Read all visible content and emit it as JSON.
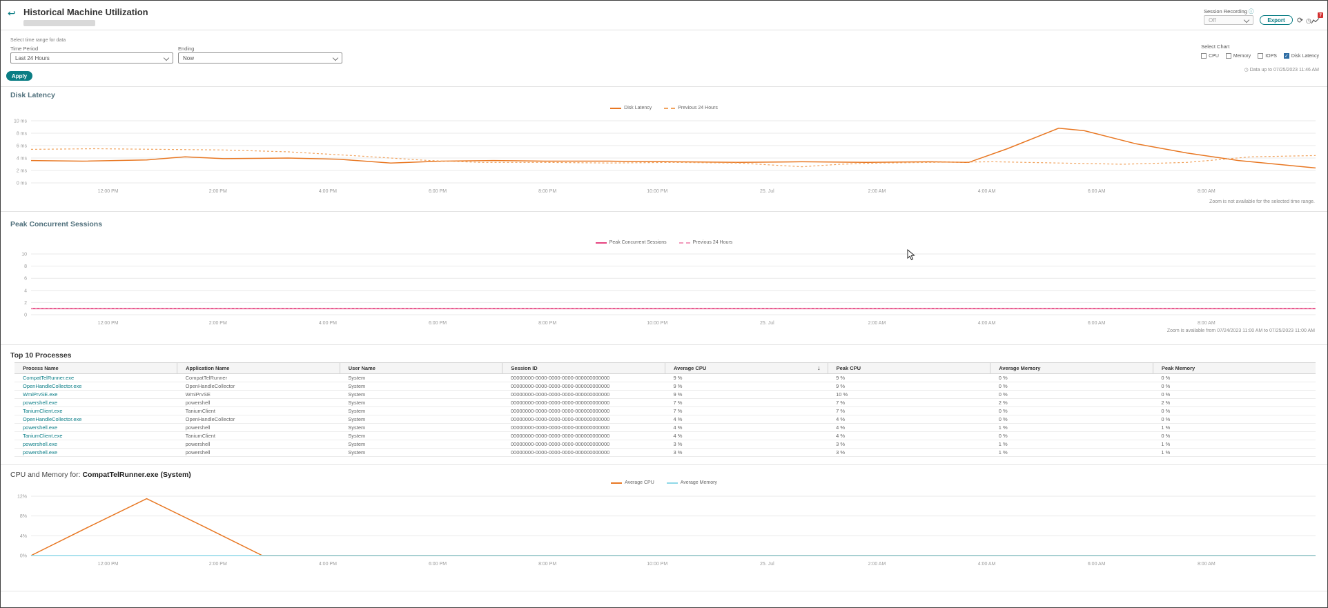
{
  "header": {
    "title": "Historical Machine Utilization",
    "session_recording_label": "Session Recording",
    "session_recording_value": "Off",
    "export_label": "Export",
    "alerts_badge": "7"
  },
  "filters": {
    "section_label": "Select time range for data",
    "time_period_label": "Time Period",
    "time_period_value": "Last 24 Hours",
    "ending_label": "Ending",
    "ending_value": "Now",
    "apply_label": "Apply",
    "select_chart_label": "Select Chart",
    "select_chart_options": [
      {
        "label": "CPU",
        "checked": false
      },
      {
        "label": "Memory",
        "checked": false
      },
      {
        "label": "IOPS",
        "checked": false
      },
      {
        "label": "Disk Latency",
        "checked": true
      }
    ],
    "data_up_to": "Data up to 07/25/2023 11:46 AM"
  },
  "colors": {
    "accent_teal": "#0a7d84",
    "orange": "#e87722",
    "orange_light": "#f1a35e",
    "pink": "#e5437f",
    "pink_light": "#f29abc",
    "cyan": "#8fd8e8",
    "checkbox_checked": "#2e6da4",
    "badge_red": "#d32f2f"
  },
  "chart_data": [
    {
      "id": "disk-latency",
      "type": "line",
      "title": "Disk Latency",
      "ymax": 10,
      "y_ticks": [
        {
          "v": 10,
          "label": "10 ms"
        },
        {
          "v": 8,
          "label": "8 ms"
        },
        {
          "v": 6,
          "label": "6 ms"
        },
        {
          "v": 4,
          "label": "4 ms"
        },
        {
          "v": 2,
          "label": "2 ms"
        },
        {
          "v": 0,
          "label": "0 ms"
        }
      ],
      "x_ticks": [
        "12:00 PM",
        "2:00 PM",
        "4:00 PM",
        "6:00 PM",
        "8:00 PM",
        "10:00 PM",
        "25. Jul",
        "2:00 AM",
        "4:00 AM",
        "6:00 AM",
        "8:00 AM"
      ],
      "series": [
        {
          "name": "Disk Latency",
          "color": "#e87722",
          "dash": false,
          "width": 1.5,
          "points": [
            [
              0,
              3.6
            ],
            [
              0.04,
              3.5
            ],
            [
              0.09,
              3.7
            ],
            [
              0.12,
              4.2
            ],
            [
              0.15,
              3.9
            ],
            [
              0.2,
              4.0
            ],
            [
              0.24,
              3.8
            ],
            [
              0.28,
              3.2
            ],
            [
              0.32,
              3.5
            ],
            [
              0.36,
              3.6
            ],
            [
              0.4,
              3.5
            ],
            [
              0.45,
              3.5
            ],
            [
              0.5,
              3.4
            ],
            [
              0.55,
              3.3
            ],
            [
              0.6,
              3.4
            ],
            [
              0.65,
              3.3
            ],
            [
              0.7,
              3.4
            ],
            [
              0.73,
              3.3
            ],
            [
              0.76,
              5.5
            ],
            [
              0.8,
              8.8
            ],
            [
              0.82,
              8.4
            ],
            [
              0.86,
              6.3
            ],
            [
              0.9,
              4.8
            ],
            [
              0.94,
              3.6
            ],
            [
              0.97,
              3.0
            ],
            [
              1,
              2.4
            ]
          ]
        },
        {
          "name": "Previous 24 Hours",
          "color": "#f1a35e",
          "dash": true,
          "width": 1.2,
          "points": [
            [
              0,
              5.4
            ],
            [
              0.05,
              5.5
            ],
            [
              0.1,
              5.4
            ],
            [
              0.15,
              5.3
            ],
            [
              0.2,
              5.0
            ],
            [
              0.25,
              4.4
            ],
            [
              0.28,
              4.0
            ],
            [
              0.31,
              3.6
            ],
            [
              0.35,
              3.3
            ],
            [
              0.4,
              3.3
            ],
            [
              0.45,
              3.2
            ],
            [
              0.5,
              3.3
            ],
            [
              0.55,
              3.2
            ],
            [
              0.6,
              2.6
            ],
            [
              0.63,
              3.0
            ],
            [
              0.66,
              3.2
            ],
            [
              0.7,
              3.3
            ],
            [
              0.75,
              3.4
            ],
            [
              0.8,
              3.2
            ],
            [
              0.85,
              3.0
            ],
            [
              0.9,
              3.3
            ],
            [
              0.95,
              4.2
            ],
            [
              1,
              4.4
            ]
          ]
        }
      ],
      "note": "Zoom is not available for the selected time range."
    },
    {
      "id": "peak-concurrent-sessions",
      "type": "line",
      "title": "Peak Concurrent Sessions",
      "ymax": 10,
      "y_ticks": [
        {
          "v": 10,
          "label": "10"
        },
        {
          "v": 8,
          "label": "8"
        },
        {
          "v": 6,
          "label": "6"
        },
        {
          "v": 4,
          "label": "4"
        },
        {
          "v": 2,
          "label": "2"
        },
        {
          "v": 0,
          "label": "0"
        }
      ],
      "x_ticks": [
        "12:00 PM",
        "2:00 PM",
        "4:00 PM",
        "6:00 PM",
        "8:00 PM",
        "10:00 PM",
        "25. Jul",
        "2:00 AM",
        "4:00 AM",
        "6:00 AM",
        "8:00 AM"
      ],
      "series": [
        {
          "name": "Peak Concurrent Sessions",
          "color": "#e5437f",
          "dash": false,
          "width": 1.8,
          "points": [
            [
              0,
              1
            ],
            [
              1,
              1
            ]
          ]
        },
        {
          "name": "Previous 24 Hours",
          "color": "#f29abc",
          "dash": true,
          "width": 1.2,
          "points": [
            [
              0,
              1
            ],
            [
              1,
              1
            ]
          ]
        }
      ],
      "note": "Zoom is available from 07/24/2023 11:00 AM to 07/25/2023 11:00 AM"
    },
    {
      "id": "process-cpu-memory",
      "type": "line",
      "title_prefix": "CPU and Memory for: ",
      "title_bold": "CompatTelRunner.exe (System)",
      "ymax": 12,
      "y_ticks": [
        {
          "v": 12,
          "label": "12%"
        },
        {
          "v": 8,
          "label": "8%"
        },
        {
          "v": 4,
          "label": "4%"
        },
        {
          "v": 0,
          "label": "0%"
        }
      ],
      "x_ticks": [
        "12:00 PM",
        "2:00 PM",
        "4:00 PM",
        "6:00 PM",
        "8:00 PM",
        "10:00 PM",
        "25. Jul",
        "2:00 AM",
        "4:00 AM",
        "6:00 AM",
        "8:00 AM"
      ],
      "series": [
        {
          "name": "Average CPU",
          "color": "#e87722",
          "dash": false,
          "width": 1.5,
          "points": [
            [
              0,
              0
            ],
            [
              0.045,
              5.8
            ],
            [
              0.09,
              11.5
            ],
            [
              0.135,
              5.8
            ],
            [
              0.18,
              0
            ],
            [
              1,
              0
            ]
          ]
        },
        {
          "name": "Average Memory",
          "color": "#8fd8e8",
          "dash": false,
          "width": 1.5,
          "points": [
            [
              0,
              0
            ],
            [
              1,
              0
            ]
          ]
        }
      ],
      "note": ""
    }
  ],
  "table": {
    "title": "Top 10 Processes",
    "columns": [
      "Process Name",
      "Application Name",
      "User Name",
      "Session ID",
      "Average CPU",
      "Peak CPU",
      "Average Memory",
      "Peak Memory"
    ],
    "sort_column": "Average CPU",
    "sort_direction": "desc",
    "rows": [
      [
        "CompatTelRunner.exe",
        "CompatTelRunner",
        "System",
        "00000000-0000-0000-0000-000000000000",
        "9 %",
        "9 %",
        "0 %",
        "0 %"
      ],
      [
        "OpenHandleCollector.exe",
        "OpenHandleCollector",
        "System",
        "00000000-0000-0000-0000-000000000000",
        "9 %",
        "9 %",
        "0 %",
        "0 %"
      ],
      [
        "WmiPrvSE.exe",
        "WmiPrvSE",
        "System",
        "00000000-0000-0000-0000-000000000000",
        "9 %",
        "10 %",
        "0 %",
        "0 %"
      ],
      [
        "powershell.exe",
        "powershell",
        "System",
        "00000000-0000-0000-0000-000000000000",
        "7 %",
        "7 %",
        "2 %",
        "2 %"
      ],
      [
        "TaniumClient.exe",
        "TaniumClient",
        "System",
        "00000000-0000-0000-0000-000000000000",
        "7 %",
        "7 %",
        "0 %",
        "0 %"
      ],
      [
        "OpenHandleCollector.exe",
        "OpenHandleCollector",
        "System",
        "00000000-0000-0000-0000-000000000000",
        "4 %",
        "4 %",
        "0 %",
        "0 %"
      ],
      [
        "powershell.exe",
        "powershell",
        "System",
        "00000000-0000-0000-0000-000000000000",
        "4 %",
        "4 %",
        "1 %",
        "1 %"
      ],
      [
        "TaniumClient.exe",
        "TaniumClient",
        "System",
        "00000000-0000-0000-0000-000000000000",
        "4 %",
        "4 %",
        "0 %",
        "0 %"
      ],
      [
        "powershell.exe",
        "powershell",
        "System",
        "00000000-0000-0000-0000-000000000000",
        "3 %",
        "3 %",
        "1 %",
        "1 %"
      ],
      [
        "powershell.exe",
        "powershell",
        "System",
        "00000000-0000-0000-0000-000000000000",
        "3 %",
        "3 %",
        "1 %",
        "1 %"
      ]
    ]
  }
}
